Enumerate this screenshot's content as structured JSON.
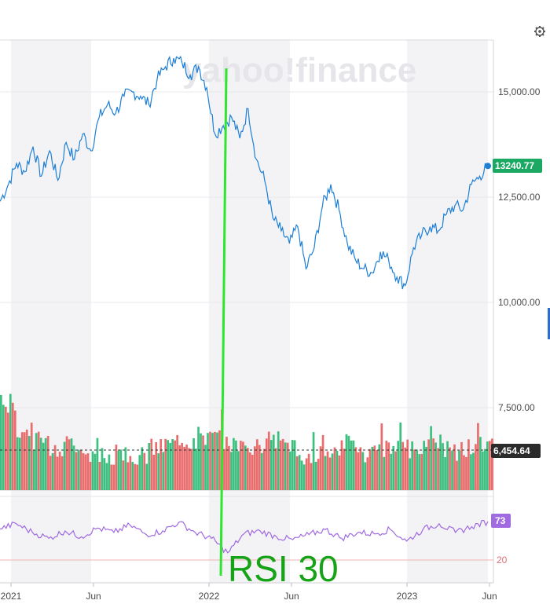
{
  "watermark": "yahoo!finance",
  "settings_icon": "gear-icon",
  "colors": {
    "price_line": "#1d7fd6",
    "price_badge": "#1aa862",
    "volume_up": "#3dbf80",
    "volume_down": "#ea6d6d",
    "volume_badge": "#2b2b2b",
    "rsi_line": "#a06ae0",
    "rsi_badge": "#a06ae0",
    "rsi_20_line": "#f2b3b3",
    "callout": "#17a317",
    "annotation_line": "#2ee62e",
    "band": "#f3f3f5",
    "grid": "#e9e9ec"
  },
  "price_badge": "13240.77",
  "volume_badge": "6,454.64",
  "rsi_badge": "73",
  "callout_text": "RSI 30",
  "chart_data": [
    {
      "type": "line",
      "name": "price",
      "ylim": [
        0,
        16000
      ],
      "yticks": [
        {
          "value": 15000,
          "label": "15,000.00"
        },
        {
          "value": 12500,
          "label": "12,500.00"
        },
        {
          "value": 10000,
          "label": "10,000.00"
        },
        {
          "value": 7500,
          "label": "7,500.00"
        }
      ],
      "xticks": [
        {
          "x": "2021-01",
          "label": "2021"
        },
        {
          "x": "2021-06",
          "label": "Jun"
        },
        {
          "x": "2022-01",
          "label": "2022"
        },
        {
          "x": "2022-06",
          "label": "Jun"
        },
        {
          "x": "2023-01",
          "label": "2023"
        },
        {
          "x": "2023-06",
          "label": "Jun"
        }
      ],
      "x": [
        "2020-12",
        "2021-01",
        "2021-01",
        "2021-02",
        "2021-02",
        "2021-03",
        "2021-03",
        "2021-04",
        "2021-04",
        "2021-05",
        "2021-05",
        "2021-06",
        "2021-06",
        "2021-07",
        "2021-07",
        "2021-08",
        "2021-08",
        "2021-09",
        "2021-09",
        "2021-10",
        "2021-10",
        "2021-11",
        "2021-11",
        "2021-12",
        "2021-12",
        "2022-01",
        "2022-01",
        "2022-02",
        "2022-02",
        "2022-03",
        "2022-03",
        "2022-04",
        "2022-04",
        "2022-05",
        "2022-05",
        "2022-06",
        "2022-06",
        "2022-07",
        "2022-07",
        "2022-08",
        "2022-08",
        "2022-09",
        "2022-09",
        "2022-10",
        "2022-10",
        "2022-11",
        "2022-11",
        "2022-12",
        "2022-12",
        "2023-01",
        "2023-01",
        "2023-02",
        "2023-02",
        "2023-03",
        "2023-03",
        "2023-04",
        "2023-04",
        "2023-05",
        "2023-05",
        "2023-06"
      ],
      "series": [
        {
          "values": [
            12400,
            12800,
            13300,
            13100,
            13700,
            13000,
            13600,
            12900,
            13800,
            13400,
            14000,
            13600,
            14400,
            14700,
            14500,
            14900,
            15000,
            14900,
            14700,
            15300,
            15600,
            15800,
            15700,
            15400,
            15600,
            15100,
            14000,
            14200,
            14400,
            13900,
            14600,
            13400,
            12900,
            12000,
            11700,
            11400,
            11800,
            10800,
            11300,
            12300,
            12800,
            12200,
            11400,
            11000,
            10800,
            10700,
            11200,
            11000,
            10600,
            10400,
            11300,
            11600,
            11800,
            11700,
            12100,
            12300,
            12200,
            12800,
            13000,
            13240.77
          ]
        }
      ]
    },
    {
      "type": "bar",
      "name": "volume",
      "reference_value": 6454.64,
      "ylim": [
        5400,
        8000
      ],
      "x": [
        "2021-01",
        "2021-02",
        "2021-03",
        "2021-04",
        "2021-05",
        "2021-06",
        "2021-07",
        "2021-08",
        "2021-09",
        "2021-10",
        "2021-11",
        "2021-12",
        "2022-01",
        "2022-02",
        "2022-03",
        "2022-04",
        "2022-05",
        "2022-06",
        "2022-07",
        "2022-08",
        "2022-09",
        "2022-10",
        "2022-11",
        "2022-12",
        "2023-01",
        "2023-02",
        "2023-03",
        "2023-04",
        "2023-05",
        "2023-06"
      ],
      "values": [
        7600,
        6900,
        6700,
        6500,
        6600,
        6400,
        6300,
        6400,
        6300,
        6500,
        6600,
        6700,
        6800,
        6700,
        6600,
        6500,
        6700,
        6600,
        6300,
        6400,
        6500,
        6600,
        6400,
        6500,
        6500,
        6600,
        6700,
        6400,
        6500,
        6600
      ]
    },
    {
      "type": "line",
      "name": "rsi",
      "ylim": [
        10,
        90
      ],
      "yticks": [
        {
          "value": 20,
          "label": "20"
        }
      ],
      "x": [
        "2020-12",
        "2021-01",
        "2021-02",
        "2021-03",
        "2021-04",
        "2021-05",
        "2021-06",
        "2021-07",
        "2021-08",
        "2021-09",
        "2021-10",
        "2021-11",
        "2021-12",
        "2022-01",
        "2022-02",
        "2022-03",
        "2022-04",
        "2022-05",
        "2022-06",
        "2022-07",
        "2022-08",
        "2022-09",
        "2022-10",
        "2022-11",
        "2022-12",
        "2023-01",
        "2023-02",
        "2023-03",
        "2023-04",
        "2023-05",
        "2023-06"
      ],
      "series": [
        {
          "values": [
            63,
            70,
            58,
            50,
            60,
            52,
            64,
            58,
            68,
            55,
            60,
            72,
            58,
            50,
            30,
            56,
            60,
            52,
            48,
            55,
            62,
            50,
            58,
            56,
            62,
            46,
            62,
            70,
            58,
            66,
            73
          ]
        }
      ]
    }
  ]
}
